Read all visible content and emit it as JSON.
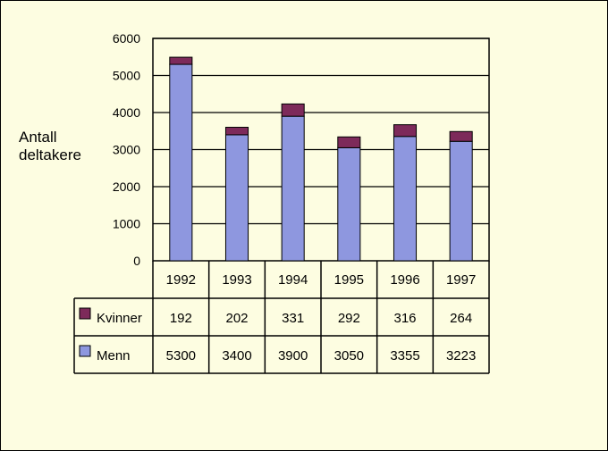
{
  "chart_data": {
    "type": "bar",
    "stacked": true,
    "ylabel_lines": [
      "Antall",
      "deltakere"
    ],
    "categories": [
      "1992",
      "1993",
      "1994",
      "1995",
      "1996",
      "1997"
    ],
    "series": [
      {
        "name": "Menn",
        "values": [
          5300,
          3400,
          3900,
          3050,
          3355,
          3223
        ]
      },
      {
        "name": "Kvinner",
        "values": [
          192,
          202,
          331,
          292,
          316,
          264
        ]
      }
    ],
    "ylim": [
      0,
      6000
    ],
    "yticks": [
      "0",
      "1000",
      "2000",
      "3000",
      "4000",
      "5000",
      "6000"
    ],
    "grid": true,
    "legend": "data-table",
    "colors": {
      "Menn": "#8e97df",
      "Kvinner": "#7d2a5a",
      "background": "#fdfde1"
    }
  }
}
